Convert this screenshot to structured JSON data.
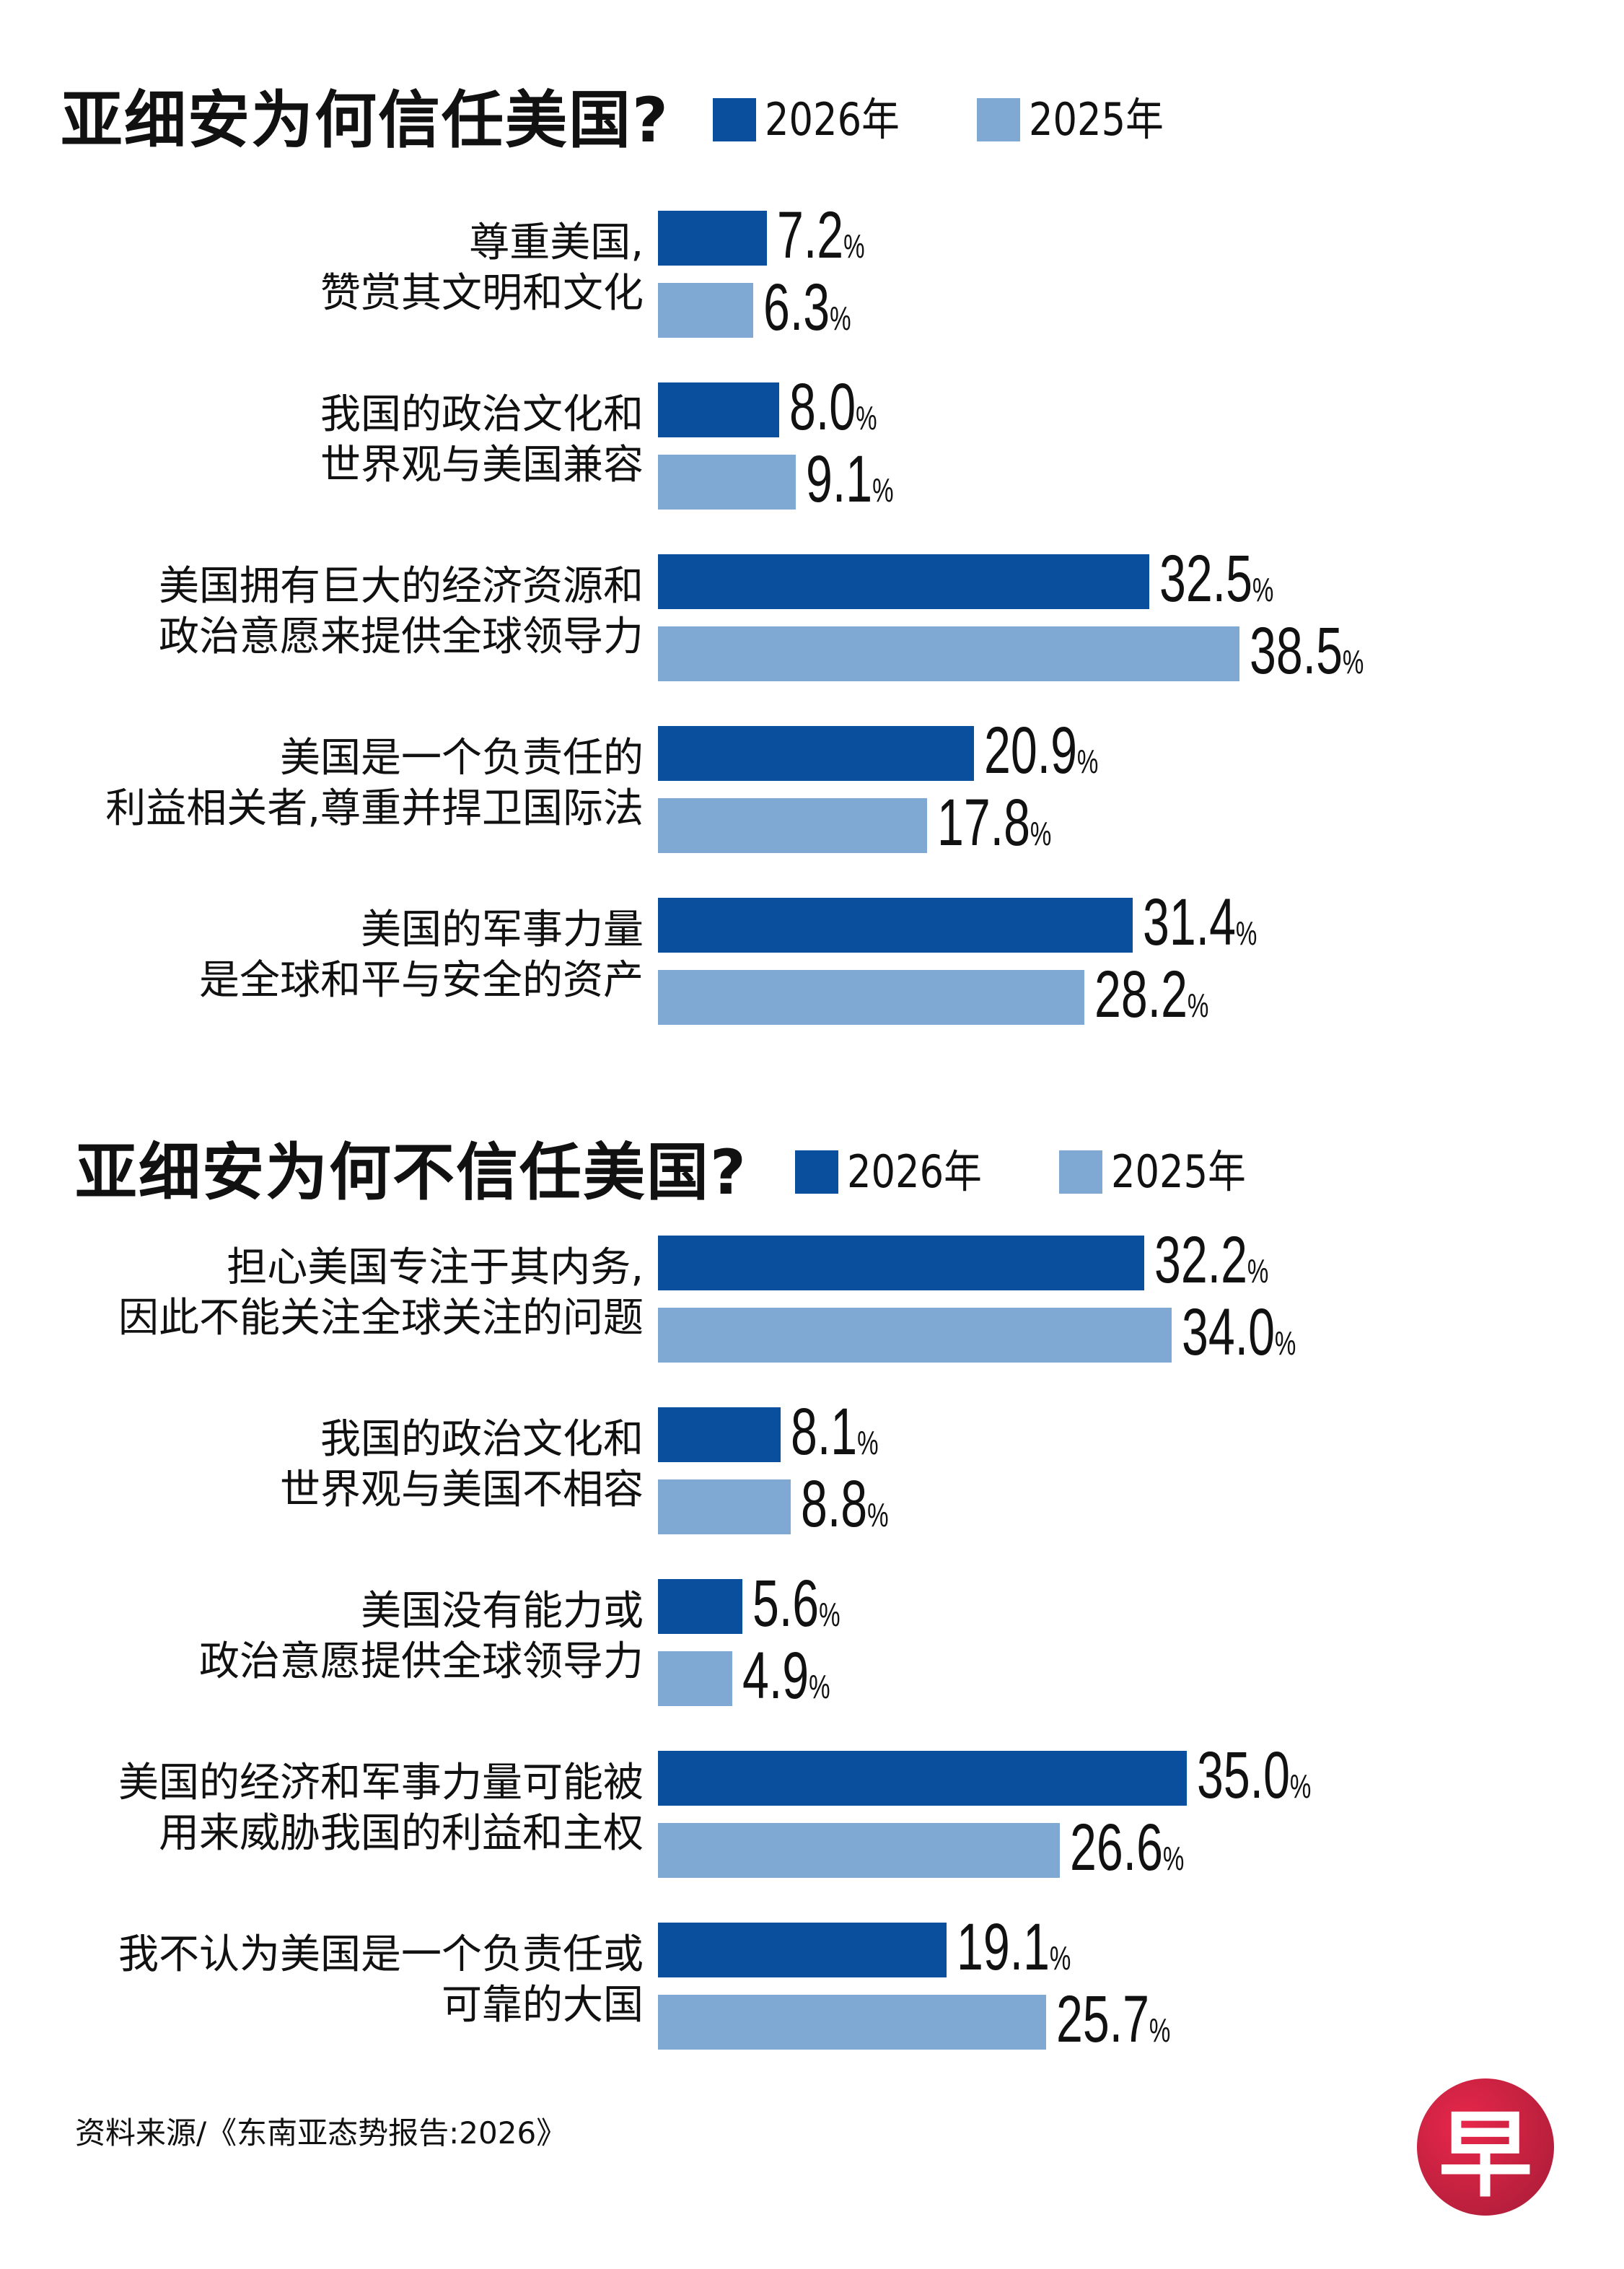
{
  "colors": {
    "y2026": "#0a4f9e",
    "y2025": "#7fa8d2"
  },
  "chart_data": [
    {
      "type": "bar",
      "orientation": "horizontal",
      "title": "亚细安为何信任美国?",
      "unit": "%",
      "series": [
        {
          "name": "2026年"
        },
        {
          "name": "2025年"
        }
      ],
      "categories": [
        {
          "lines": [
            "尊重美国,",
            "赞赏其文明和文化"
          ],
          "v2026": 7.2,
          "v2025": 6.3
        },
        {
          "lines": [
            "我国的政治文化和",
            "世界观与美国兼容"
          ],
          "v2026": 8.0,
          "v2025": 9.1
        },
        {
          "lines": [
            "美国拥有巨大的经济资源和",
            "政治意愿来提供全球领导力"
          ],
          "v2026": 32.5,
          "v2025": 38.5
        },
        {
          "lines": [
            "美国是一个负责任的",
            "利益相关者,尊重并捍卫国际法"
          ],
          "v2026": 20.9,
          "v2025": 17.8
        },
        {
          "lines": [
            "美国的军事力量",
            "是全球和平与安全的资产"
          ],
          "v2026": 31.4,
          "v2025": 28.2
        }
      ]
    },
    {
      "type": "bar",
      "orientation": "horizontal",
      "title": "亚细安为何不信任美国?",
      "unit": "%",
      "series": [
        {
          "name": "2026年"
        },
        {
          "name": "2025年"
        }
      ],
      "categories": [
        {
          "lines": [
            "担心美国专注于其内务,",
            "因此不能关注全球关注的问题"
          ],
          "v2026": 32.2,
          "v2025": 34.0
        },
        {
          "lines": [
            "我国的政治文化和",
            "世界观与美国不相容"
          ],
          "v2026": 8.1,
          "v2025": 8.8
        },
        {
          "lines": [
            "美国没有能力或",
            "政治意愿提供全球领导力"
          ],
          "v2026": 5.6,
          "v2025": 4.9
        },
        {
          "lines": [
            "美国的经济和军事力量可能被",
            "用来威胁我国的利益和主权"
          ],
          "v2026": 35.0,
          "v2025": 26.6
        },
        {
          "lines": [
            "我不认为美国是一个负责任或",
            "可靠的大国"
          ],
          "v2026": 19.1,
          "v2025": 25.7
        }
      ]
    }
  ],
  "source": "资料来源/《东南亚态势报告:2026》",
  "logo": {
    "text": "早",
    "icon": "zaobao-logo"
  }
}
